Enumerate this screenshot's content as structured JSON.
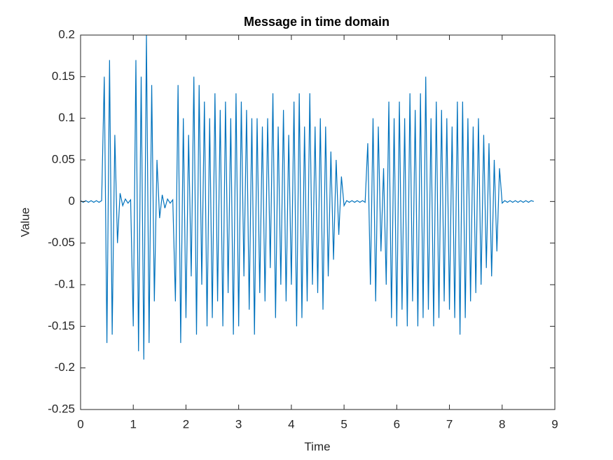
{
  "chart_data": {
    "type": "line",
    "title": "Message in time domain",
    "xlabel": "Time",
    "ylabel": "Value",
    "color": "#0072bd",
    "xlim": [
      0,
      9
    ],
    "xticks": [
      0,
      1,
      2,
      3,
      4,
      5,
      6,
      7,
      8,
      9
    ],
    "ylim": [
      -0.25,
      0.2
    ],
    "yticks": [
      -0.25,
      -0.2,
      -0.15,
      -0.1,
      -0.05,
      0,
      0.05,
      0.1,
      0.15,
      0.2
    ],
    "x": [
      0,
      0.05,
      0.1,
      0.15,
      0.2,
      0.25,
      0.3,
      0.35,
      0.4,
      0.45,
      0.5,
      0.55,
      0.6,
      0.65,
      0.7,
      0.75,
      0.8,
      0.85,
      0.9,
      0.95,
      1,
      1.05,
      1.1,
      1.15,
      1.2,
      1.25,
      1.3,
      1.35,
      1.4,
      1.45,
      1.5,
      1.55,
      1.6,
      1.65,
      1.7,
      1.75,
      1.8,
      1.85,
      1.9,
      1.95,
      2,
      2.05,
      2.1,
      2.15,
      2.2,
      2.25,
      2.3,
      2.35,
      2.4,
      2.45,
      2.5,
      2.55,
      2.6,
      2.65,
      2.7,
      2.75,
      2.8,
      2.85,
      2.9,
      2.95,
      3,
      3.05,
      3.1,
      3.15,
      3.2,
      3.25,
      3.3,
      3.35,
      3.4,
      3.45,
      3.5,
      3.55,
      3.6,
      3.65,
      3.7,
      3.75,
      3.8,
      3.85,
      3.9,
      3.95,
      4,
      4.05,
      4.1,
      4.15,
      4.2,
      4.25,
      4.3,
      4.35,
      4.4,
      4.45,
      4.5,
      4.55,
      4.6,
      4.65,
      4.7,
      4.75,
      4.8,
      4.85,
      4.9,
      4.95,
      5,
      5.05,
      5.1,
      5.15,
      5.2,
      5.25,
      5.3,
      5.35,
      5.4,
      5.45,
      5.5,
      5.55,
      5.6,
      5.65,
      5.7,
      5.75,
      5.8,
      5.85,
      5.9,
      5.95,
      6,
      6.05,
      6.1,
      6.15,
      6.2,
      6.25,
      6.3,
      6.35,
      6.4,
      6.45,
      6.5,
      6.55,
      6.6,
      6.65,
      6.7,
      6.75,
      6.8,
      6.85,
      6.9,
      6.95,
      7,
      7.05,
      7.1,
      7.15,
      7.2,
      7.25,
      7.3,
      7.35,
      7.4,
      7.45,
      7.5,
      7.55,
      7.6,
      7.65,
      7.7,
      7.75,
      7.8,
      7.85,
      7.9,
      7.95,
      8,
      8.05,
      8.1,
      8.15,
      8.2,
      8.25,
      8.3,
      8.35,
      8.4,
      8.45,
      8.5,
      8.55,
      8.6
    ],
    "values": [
      0.001,
      -0.001,
      0.001,
      -0.001,
      0.001,
      -0.001,
      0.001,
      -0.001,
      0.001,
      0.15,
      -0.17,
      0.17,
      -0.16,
      0.08,
      -0.05,
      0.01,
      -0.005,
      0.003,
      -0.002,
      0.002,
      -0.15,
      0.17,
      -0.18,
      0.15,
      -0.19,
      0.2,
      -0.17,
      0.14,
      -0.12,
      0.05,
      -0.02,
      0.008,
      -0.008,
      0.003,
      -0.002,
      0.002,
      -0.12,
      0.14,
      -0.17,
      0.1,
      -0.14,
      0.08,
      -0.09,
      0.15,
      -0.16,
      0.14,
      -0.1,
      0.12,
      -0.15,
      0.1,
      -0.14,
      0.13,
      -0.12,
      0.11,
      -0.15,
      0.12,
      -0.11,
      0.1,
      -0.16,
      0.13,
      -0.15,
      0.12,
      -0.09,
      0.11,
      -0.13,
      0.1,
      -0.16,
      0.1,
      -0.11,
      0.09,
      -0.12,
      0.1,
      -0.08,
      0.13,
      -0.14,
      0.09,
      -0.1,
      0.11,
      -0.12,
      0.08,
      -0.1,
      0.12,
      -0.15,
      0.13,
      -0.14,
      0.09,
      -0.12,
      0.13,
      -0.1,
      0.09,
      -0.11,
      0.1,
      -0.13,
      0.09,
      -0.09,
      0.06,
      -0.07,
      0.05,
      -0.04,
      0.03,
      -0.005,
      0.001,
      -0.001,
      0.001,
      -0.001,
      0.001,
      -0.001,
      0.001,
      -0.001,
      0.07,
      -0.1,
      0.1,
      -0.12,
      0.09,
      -0.06,
      0.04,
      -0.1,
      0.12,
      -0.14,
      0.1,
      -0.15,
      0.12,
      -0.13,
      0.1,
      -0.15,
      0.13,
      -0.12,
      0.11,
      -0.15,
      0.13,
      -0.14,
      0.15,
      -0.13,
      0.1,
      -0.15,
      0.12,
      -0.14,
      0.11,
      -0.12,
      0.1,
      -0.13,
      0.09,
      -0.14,
      0.12,
      -0.16,
      0.12,
      -0.14,
      0.1,
      -0.12,
      0.09,
      -0.11,
      0.1,
      -0.1,
      0.08,
      -0.08,
      0.07,
      -0.09,
      0.05,
      -0.06,
      0.04,
      -0.002,
      0.001,
      -0.001,
      0.001,
      -0.001,
      0.001,
      -0.001,
      0.001,
      -0.001,
      0.001,
      -0.001,
      0.001,
      0
    ]
  }
}
